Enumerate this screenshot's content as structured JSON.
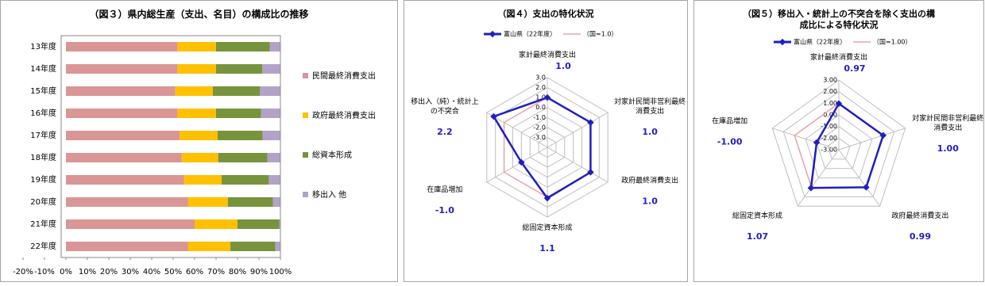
{
  "chart_data": [
    {
      "type": "bar",
      "orientation": "horizontal",
      "stacked": true,
      "title": "（図３）県内総生産（支出、名目）の構成比の推移",
      "categories": [
        "13年度",
        "14年度",
        "15年度",
        "16年度",
        "17年度",
        "18年度",
        "19年度",
        "20年度",
        "21年度",
        "22年度"
      ],
      "series": [
        {
          "name": "民間最終消費支出",
          "color": "#d99694",
          "values": [
            52,
            52,
            51,
            52,
            53,
            54,
            55,
            57,
            60,
            57
          ]
        },
        {
          "name": "政府最終消費支出",
          "color": "#ffc000",
          "values": [
            18,
            18,
            17.5,
            18,
            17.7,
            17,
            17.6,
            18.5,
            20,
            19.7
          ]
        },
        {
          "name": "総資本形成",
          "color": "#77933c",
          "values": [
            25,
            21.5,
            22,
            21,
            21,
            23,
            22,
            21,
            19.5,
            21
          ]
        },
        {
          "name": "移出入  他",
          "color": "#b3a2c7",
          "values": [
            5,
            8.5,
            9.5,
            9,
            8.3,
            6,
            5.4,
            3.5,
            0.5,
            2.3
          ]
        }
      ],
      "xlim": [
        -20,
        100
      ],
      "xticks": [
        {
          "value": -20,
          "label": "-20%"
        },
        {
          "value": -10,
          "label": "-10%"
        },
        {
          "value": 0,
          "label": "0%"
        },
        {
          "value": 10,
          "label": "10%"
        },
        {
          "value": 20,
          "label": "20%"
        },
        {
          "value": 30,
          "label": "30%"
        },
        {
          "value": 40,
          "label": "40%"
        },
        {
          "value": 50,
          "label": "50%"
        },
        {
          "value": 60,
          "label": "60%"
        },
        {
          "value": 70,
          "label": "70%"
        },
        {
          "value": 80,
          "label": "80%"
        },
        {
          "value": 90,
          "label": "90%"
        },
        {
          "value": 100,
          "label": "100%"
        }
      ],
      "legend": "right"
    },
    {
      "type": "radar",
      "title": "（図４）支出の特化状況",
      "categories": [
        "家計最終消費支出",
        "対家計民間非営利最終消費支出",
        "政府最終消費支出",
        "総固定資本形成",
        "在庫品増加",
        "移出入（純）・統計上の不突合"
      ],
      "series": [
        {
          "name": "富山県（22年度）",
          "color": "#1f1fbf",
          "values": [
            1.0,
            1.0,
            1.0,
            1.1,
            -1.0,
            2.2
          ],
          "value_labels": [
            "1.0",
            "1.0",
            "1.0",
            "1.1",
            "-1.0",
            "2.2"
          ]
        },
        {
          "name": "（国=1.0）",
          "color": "#e6a3ab",
          "values": [
            1,
            1,
            1,
            1,
            1,
            1
          ]
        }
      ],
      "rlim": [
        -4,
        3
      ],
      "rticks": [
        {
          "value": 3,
          "label": "3.0"
        },
        {
          "value": 2,
          "label": "2.0"
        },
        {
          "value": 1,
          "label": "1.0"
        },
        {
          "value": 0,
          "label": "0.0"
        },
        {
          "value": -1,
          "label": "-1.0"
        },
        {
          "value": -2,
          "label": "-2.0"
        },
        {
          "value": -3,
          "label": "-3.0"
        }
      ],
      "legend": "top"
    },
    {
      "type": "radar",
      "title": "（図５）移出入・統計上の不突合を除く支出の構成比による特化状況",
      "categories": [
        "家計最終消費支出",
        "対家計民間非営利最終消費支出",
        "政府最終消費支出",
        "総固定資本形成",
        "在庫品増加"
      ],
      "series": [
        {
          "name": "富山県（22年度）",
          "color": "#1f1fbf",
          "values": [
            0.97,
            1.0,
            0.99,
            1.07,
            -1.0
          ],
          "value_labels": [
            "0.97",
            "1.00",
            "0.99",
            "1.07",
            "-1.00"
          ]
        },
        {
          "name": "（国=1.00）",
          "color": "#e6a3ab",
          "values": [
            1,
            1,
            1,
            1,
            1
          ]
        }
      ],
      "rlim": [
        -3,
        3
      ],
      "rticks": [
        {
          "value": 3,
          "label": "3.00"
        },
        {
          "value": 2,
          "label": "2.00"
        },
        {
          "value": 1,
          "label": "1.00"
        },
        {
          "value": 0,
          "label": "0.00"
        },
        {
          "value": -1,
          "label": "-1.00"
        },
        {
          "value": -2,
          "label": "-2.00"
        },
        {
          "value": -3,
          "label": "-3.00"
        }
      ],
      "legend": "top"
    }
  ]
}
